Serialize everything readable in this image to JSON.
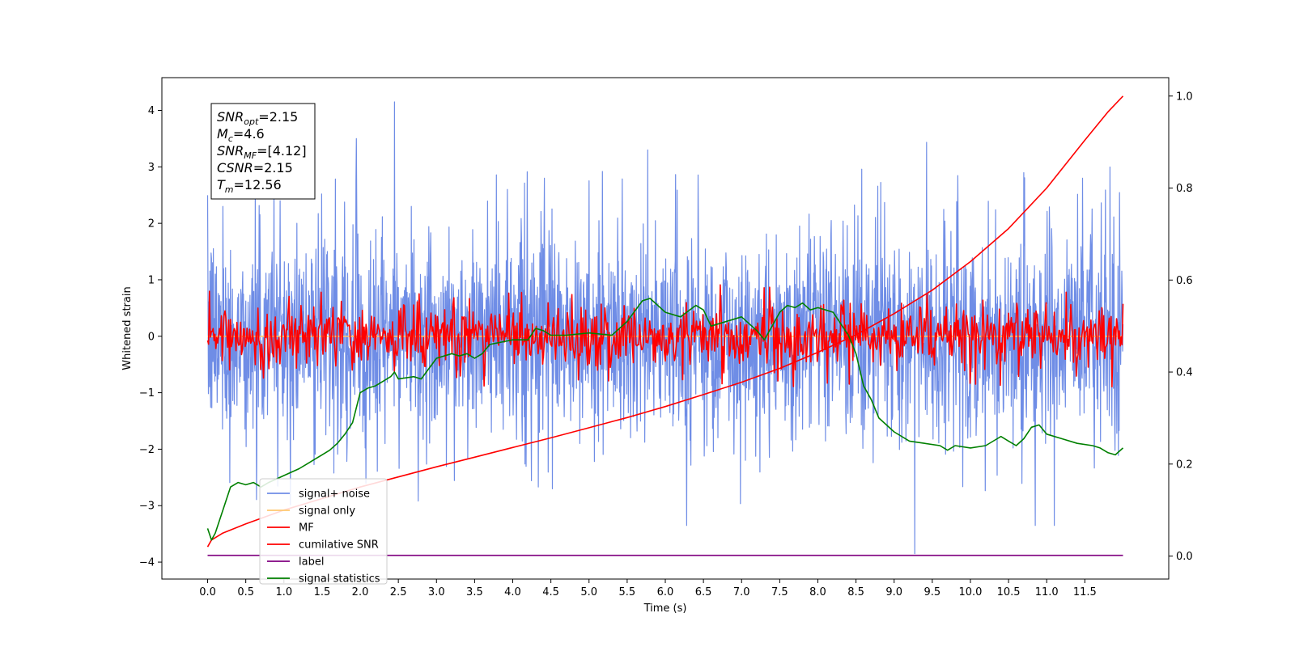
{
  "chart_data": {
    "type": "line",
    "title": "",
    "xlabel": "Time (s)",
    "ylabel": "Whitened strain",
    "xlim": [
      -0.6,
      12.6
    ],
    "ylim": [
      -4.3,
      4.58
    ],
    "ylim_right": [
      -0.05,
      1.04
    ],
    "x_ticks": [
      0.0,
      0.5,
      1.0,
      1.5,
      2.0,
      2.5,
      3.0,
      3.5,
      4.0,
      4.5,
      5.0,
      5.5,
      6.0,
      6.5,
      7.0,
      7.5,
      8.0,
      8.5,
      9.0,
      9.5,
      10.0,
      10.5,
      11.0,
      11.5
    ],
    "x_tick_labels": [
      "0.0",
      "0.5",
      "1.0",
      "1.5",
      "2.0",
      "2.5",
      "3.0",
      "3.5",
      "4.0",
      "4.5",
      "5.0",
      "5.5",
      "6.0",
      "6.5",
      "7.0",
      "7.5",
      "8.0",
      "8.5",
      "9.0",
      "9.5",
      "10.0",
      "10.5",
      "11.0",
      "11.5"
    ],
    "y_ticks": [
      -4,
      -3,
      -2,
      -1,
      0,
      1,
      2,
      3,
      4
    ],
    "y_tick_labels": [
      "−4",
      "−3",
      "−2",
      "−1",
      "0",
      "1",
      "2",
      "3",
      "4"
    ],
    "y2_ticks": [
      0.0,
      0.2,
      0.4,
      0.6,
      0.8,
      1.0
    ],
    "y2_tick_labels": [
      "0.0",
      "0.2",
      "0.4",
      "0.6",
      "0.8",
      "1.0"
    ],
    "grid": false,
    "legend_position": "lower-left",
    "series": [
      {
        "name": "signal+ noise",
        "color": "#6f8de6",
        "axis": "left",
        "kind": "noise",
        "x_range": [
          0,
          12
        ],
        "amplitude": 0.9,
        "spikes": [
          [
            0.2,
            2.3
          ],
          [
            0.95,
            2.4
          ],
          [
            1.95,
            3.5
          ],
          [
            2.45,
            4.15
          ],
          [
            5.77,
            3.3
          ],
          [
            6.28,
            -3.35
          ],
          [
            9.27,
            -3.85
          ],
          [
            10.85,
            -3.35
          ],
          [
            11.1,
            -3.35
          ],
          [
            11.47,
            2.8
          ]
        ]
      },
      {
        "name": "signal only",
        "color": "#ffc870",
        "axis": "left",
        "kind": "constant",
        "x_range": [
          0,
          12
        ],
        "value": 0.0
      },
      {
        "name": "MF",
        "color": "#ff0000",
        "axis": "left",
        "kind": "noise",
        "x_range": [
          0,
          12
        ],
        "amplitude": 0.28
      },
      {
        "name": "cumilative SNR",
        "color": "#ff0000",
        "axis": "right",
        "x": [
          0.0,
          0.05,
          0.2,
          0.5,
          1.0,
          1.5,
          2.0,
          2.5,
          3.0,
          3.5,
          4.0,
          4.5,
          5.0,
          5.5,
          6.0,
          6.5,
          7.0,
          7.5,
          8.0,
          8.5,
          9.0,
          9.5,
          10.0,
          10.5,
          11.0,
          11.5,
          11.8,
          12.0
        ],
        "values": [
          0.02,
          0.035,
          0.05,
          0.07,
          0.1,
          0.125,
          0.15,
          0.172,
          0.194,
          0.215,
          0.236,
          0.257,
          0.279,
          0.301,
          0.325,
          0.351,
          0.378,
          0.408,
          0.443,
          0.481,
          0.527,
          0.578,
          0.64,
          0.712,
          0.8,
          0.904,
          0.965,
          1.0
        ]
      },
      {
        "name": "label",
        "color": "#800080",
        "axis": "left",
        "x": [
          0.0,
          12.0
        ],
        "values": [
          -3.88,
          -3.88
        ]
      },
      {
        "name": "signal statistics",
        "color": "#008000",
        "axis": "right",
        "x": [
          0.0,
          0.05,
          0.1,
          0.2,
          0.3,
          0.4,
          0.5,
          0.6,
          0.7,
          0.8,
          1.0,
          1.2,
          1.3,
          1.4,
          1.5,
          1.6,
          1.7,
          1.8,
          1.9,
          2.0,
          2.1,
          2.2,
          2.3,
          2.4,
          2.45,
          2.5,
          2.7,
          2.8,
          3.0,
          3.2,
          3.3,
          3.4,
          3.5,
          3.6,
          3.7,
          4.0,
          4.2,
          4.3,
          4.4,
          4.5,
          4.7,
          5.0,
          5.3,
          5.5,
          5.7,
          5.8,
          6.0,
          6.2,
          6.4,
          6.5,
          6.6,
          6.7,
          7.0,
          7.2,
          7.3,
          7.4,
          7.5,
          7.6,
          7.7,
          7.8,
          7.9,
          8.0,
          8.1,
          8.2,
          8.4,
          8.5,
          8.6,
          8.7,
          8.8,
          9.0,
          9.2,
          9.4,
          9.6,
          9.7,
          9.8,
          10.0,
          10.2,
          10.35,
          10.4,
          10.5,
          10.6,
          10.7,
          10.8,
          10.9,
          11.0,
          11.2,
          11.4,
          11.6,
          11.7,
          11.8,
          11.9,
          12.0
        ],
        "values": [
          0.06,
          0.035,
          0.05,
          0.1,
          0.15,
          0.16,
          0.155,
          0.16,
          0.15,
          0.16,
          0.175,
          0.19,
          0.2,
          0.21,
          0.22,
          0.23,
          0.245,
          0.265,
          0.29,
          0.355,
          0.365,
          0.37,
          0.38,
          0.39,
          0.4,
          0.385,
          0.39,
          0.385,
          0.43,
          0.44,
          0.435,
          0.44,
          0.43,
          0.44,
          0.46,
          0.47,
          0.47,
          0.495,
          0.49,
          0.48,
          0.48,
          0.485,
          0.48,
          0.51,
          0.555,
          0.56,
          0.53,
          0.52,
          0.545,
          0.535,
          0.5,
          0.505,
          0.52,
          0.49,
          0.47,
          0.5,
          0.53,
          0.545,
          0.54,
          0.55,
          0.535,
          0.54,
          0.535,
          0.53,
          0.48,
          0.44,
          0.37,
          0.34,
          0.3,
          0.27,
          0.25,
          0.245,
          0.24,
          0.23,
          0.24,
          0.235,
          0.24,
          0.255,
          0.26,
          0.25,
          0.24,
          0.255,
          0.28,
          0.285,
          0.265,
          0.255,
          0.245,
          0.24,
          0.235,
          0.225,
          0.22,
          0.235
        ]
      }
    ],
    "annotation": {
      "lines": [
        {
          "main": "SNR",
          "sub": "opt",
          "value": "=2.15"
        },
        {
          "main": "M",
          "sub": "c",
          "value": "=4.6"
        },
        {
          "main": "SNR",
          "sub": "MF",
          "value": "=[4.12]"
        },
        {
          "main": "CSNR",
          "sub": "",
          "value": "=2.15"
        },
        {
          "main": "T",
          "sub": "m",
          "value": "=12.56"
        }
      ]
    }
  }
}
